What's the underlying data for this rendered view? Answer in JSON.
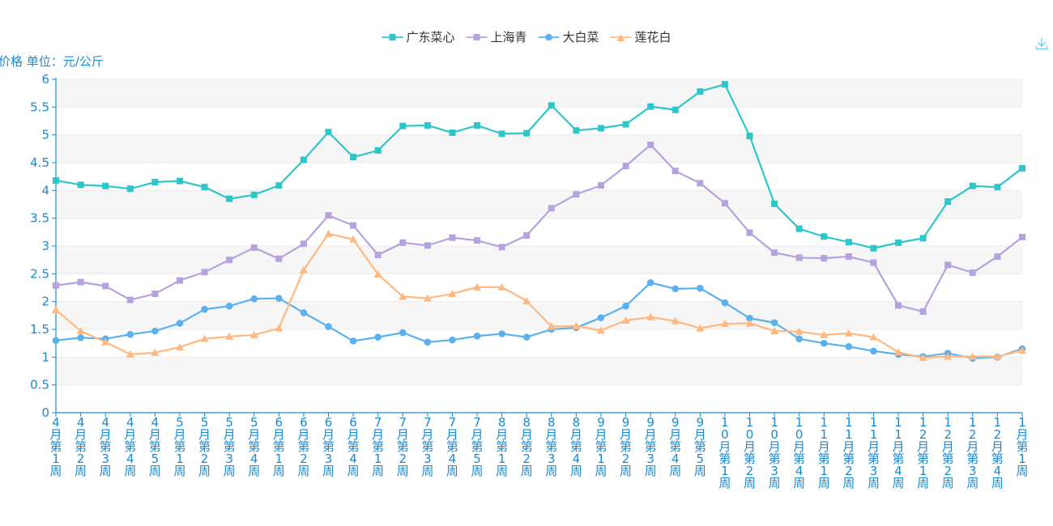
{
  "chart_data": {
    "type": "line",
    "y_unit_label": "价格 单位：元/公斤",
    "ylim": [
      0,
      6
    ],
    "y_ticks": [
      "0",
      "0.5",
      "1",
      "1.5",
      "2",
      "2.5",
      "3",
      "3.5",
      "4",
      "4.5",
      "5",
      "5.5",
      "6"
    ],
    "grid": true,
    "legend_position": "top-center",
    "categories": [
      "4月第1周",
      "4月第2周",
      "4月第3周",
      "4月第4周",
      "4月第5周",
      "5月第1周",
      "5月第2周",
      "5月第3周",
      "5月第4周",
      "6月第1周",
      "6月第2周",
      "6月第3周",
      "6月第4周",
      "7月第1周",
      "7月第2周",
      "7月第3周",
      "7月第4周",
      "7月第5周",
      "8月第1周",
      "8月第2周",
      "8月第3周",
      "8月第4周",
      "9月第1周",
      "9月第2周",
      "9月第3周",
      "9月第4周",
      "9月第5周",
      "10月第1周",
      "10月第2周",
      "10月第3周",
      "10月第4周",
      "11月第1周",
      "11月第2周",
      "11月第3周",
      "11月第4周",
      "12月第1周",
      "12月第2周",
      "12月第3周",
      "12月第4周",
      "1月第1周"
    ],
    "series": [
      {
        "name": "广东菜心",
        "color": "#2ec7c9",
        "marker": "square",
        "values": [
          4.18,
          4.1,
          4.08,
          4.03,
          4.15,
          4.17,
          4.06,
          3.85,
          3.92,
          4.09,
          4.55,
          5.05,
          4.6,
          4.72,
          5.16,
          5.17,
          5.04,
          5.17,
          5.02,
          5.03,
          5.53,
          5.08,
          5.12,
          5.19,
          5.51,
          5.45,
          5.78,
          5.91,
          4.98,
          3.76,
          3.31,
          3.17,
          3.07,
          2.96,
          3.06,
          3.14,
          3.8,
          4.08,
          4.06,
          4.4
        ]
      },
      {
        "name": "上海青",
        "color": "#b6a2de",
        "marker": "square",
        "values": [
          2.29,
          2.35,
          2.28,
          2.03,
          2.14,
          2.38,
          2.53,
          2.75,
          2.97,
          2.77,
          3.04,
          3.55,
          3.37,
          2.84,
          3.06,
          3.01,
          3.15,
          3.1,
          2.98,
          3.19,
          3.68,
          3.93,
          4.09,
          4.44,
          4.82,
          4.35,
          4.13,
          3.77,
          3.24,
          2.88,
          2.79,
          2.78,
          2.81,
          2.7,
          1.93,
          1.82,
          2.66,
          2.52,
          2.81,
          3.16
        ]
      },
      {
        "name": "大白菜",
        "color": "#5ab1ef",
        "marker": "circle",
        "values": [
          1.3,
          1.35,
          1.33,
          1.41,
          1.47,
          1.61,
          1.86,
          1.92,
          2.05,
          2.06,
          1.8,
          1.55,
          1.29,
          1.36,
          1.44,
          1.27,
          1.31,
          1.38,
          1.42,
          1.36,
          1.5,
          1.53,
          1.71,
          1.92,
          2.34,
          2.23,
          2.24,
          1.98,
          1.7,
          1.62,
          1.33,
          1.25,
          1.19,
          1.11,
          1.05,
          1.01,
          1.07,
          0.98,
          1.0,
          1.15
        ]
      },
      {
        "name": "莲花白",
        "color": "#ffb980",
        "marker": "triangle",
        "values": [
          1.85,
          1.47,
          1.27,
          1.05,
          1.08,
          1.18,
          1.33,
          1.37,
          1.4,
          1.52,
          2.57,
          3.22,
          3.12,
          2.49,
          2.09,
          2.06,
          2.14,
          2.26,
          2.26,
          2.01,
          1.55,
          1.56,
          1.48,
          1.66,
          1.72,
          1.65,
          1.52,
          1.6,
          1.61,
          1.47,
          1.46,
          1.4,
          1.43,
          1.36,
          1.09,
          0.99,
          1.01,
          1.01,
          1.01,
          1.12
        ]
      }
    ]
  },
  "toolbox": {
    "download_icon": "download-icon"
  }
}
